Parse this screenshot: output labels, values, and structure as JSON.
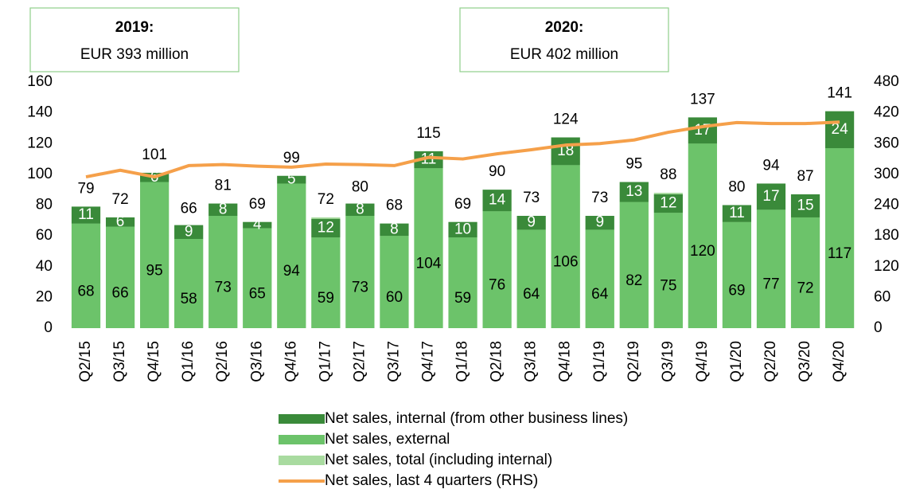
{
  "chart_data": {
    "type": "bar",
    "annotations": [
      {
        "title": "2019:",
        "text": "EUR 393 million"
      },
      {
        "title": "2020:",
        "text": "EUR 402 million"
      }
    ],
    "categories": [
      "Q2/15",
      "Q3/15",
      "Q4/15",
      "Q1/16",
      "Q2/16",
      "Q3/16",
      "Q4/16",
      "Q1/17",
      "Q2/17",
      "Q3/17",
      "Q4/17",
      "Q1/18",
      "Q2/18",
      "Q3/18",
      "Q4/18",
      "Q1/19",
      "Q2/19",
      "Q3/19",
      "Q4/19",
      "Q1/20",
      "Q2/20",
      "Q3/20",
      "Q4/20"
    ],
    "series": [
      {
        "name": "Net sales, internal (from other business lines)",
        "color": "#3a8a3a",
        "values": [
          11,
          6,
          6,
          9,
          8,
          4,
          5,
          12,
          8,
          8,
          11,
          10,
          14,
          9,
          18,
          9,
          13,
          12,
          17,
          11,
          17,
          15,
          24
        ]
      },
      {
        "name": "Net sales, external",
        "color": "#6cc36a",
        "values": [
          68,
          66,
          95,
          58,
          73,
          65,
          94,
          59,
          73,
          60,
          104,
          59,
          76,
          64,
          106,
          64,
          82,
          75,
          120,
          69,
          77,
          72,
          117
        ]
      },
      {
        "name": "Net sales, total (including internal)",
        "color": "#a9dba0",
        "values": [
          79,
          72,
          101,
          66,
          81,
          69,
          99,
          72,
          80,
          68,
          115,
          69,
          90,
          73,
          124,
          73,
          95,
          88,
          137,
          80,
          94,
          87,
          141
        ]
      },
      {
        "name": "Net sales, last 4 quarters (RHS)",
        "color": "#f5a04a",
        "type": "line",
        "axis": "y2",
        "values": [
          295,
          308,
          295,
          317,
          319,
          316,
          314,
          320,
          319,
          317,
          333,
          330,
          340,
          348,
          357,
          360,
          367,
          382,
          393,
          401,
          399,
          399,
          402
        ]
      }
    ],
    "ylim": [
      0,
      160
    ],
    "yticks": [
      0,
      20,
      40,
      60,
      80,
      100,
      120,
      140,
      160
    ],
    "y2lim": [
      0,
      480
    ],
    "y2ticks": [
      0,
      60,
      120,
      180,
      240,
      300,
      360,
      420,
      480
    ],
    "grid": false
  }
}
